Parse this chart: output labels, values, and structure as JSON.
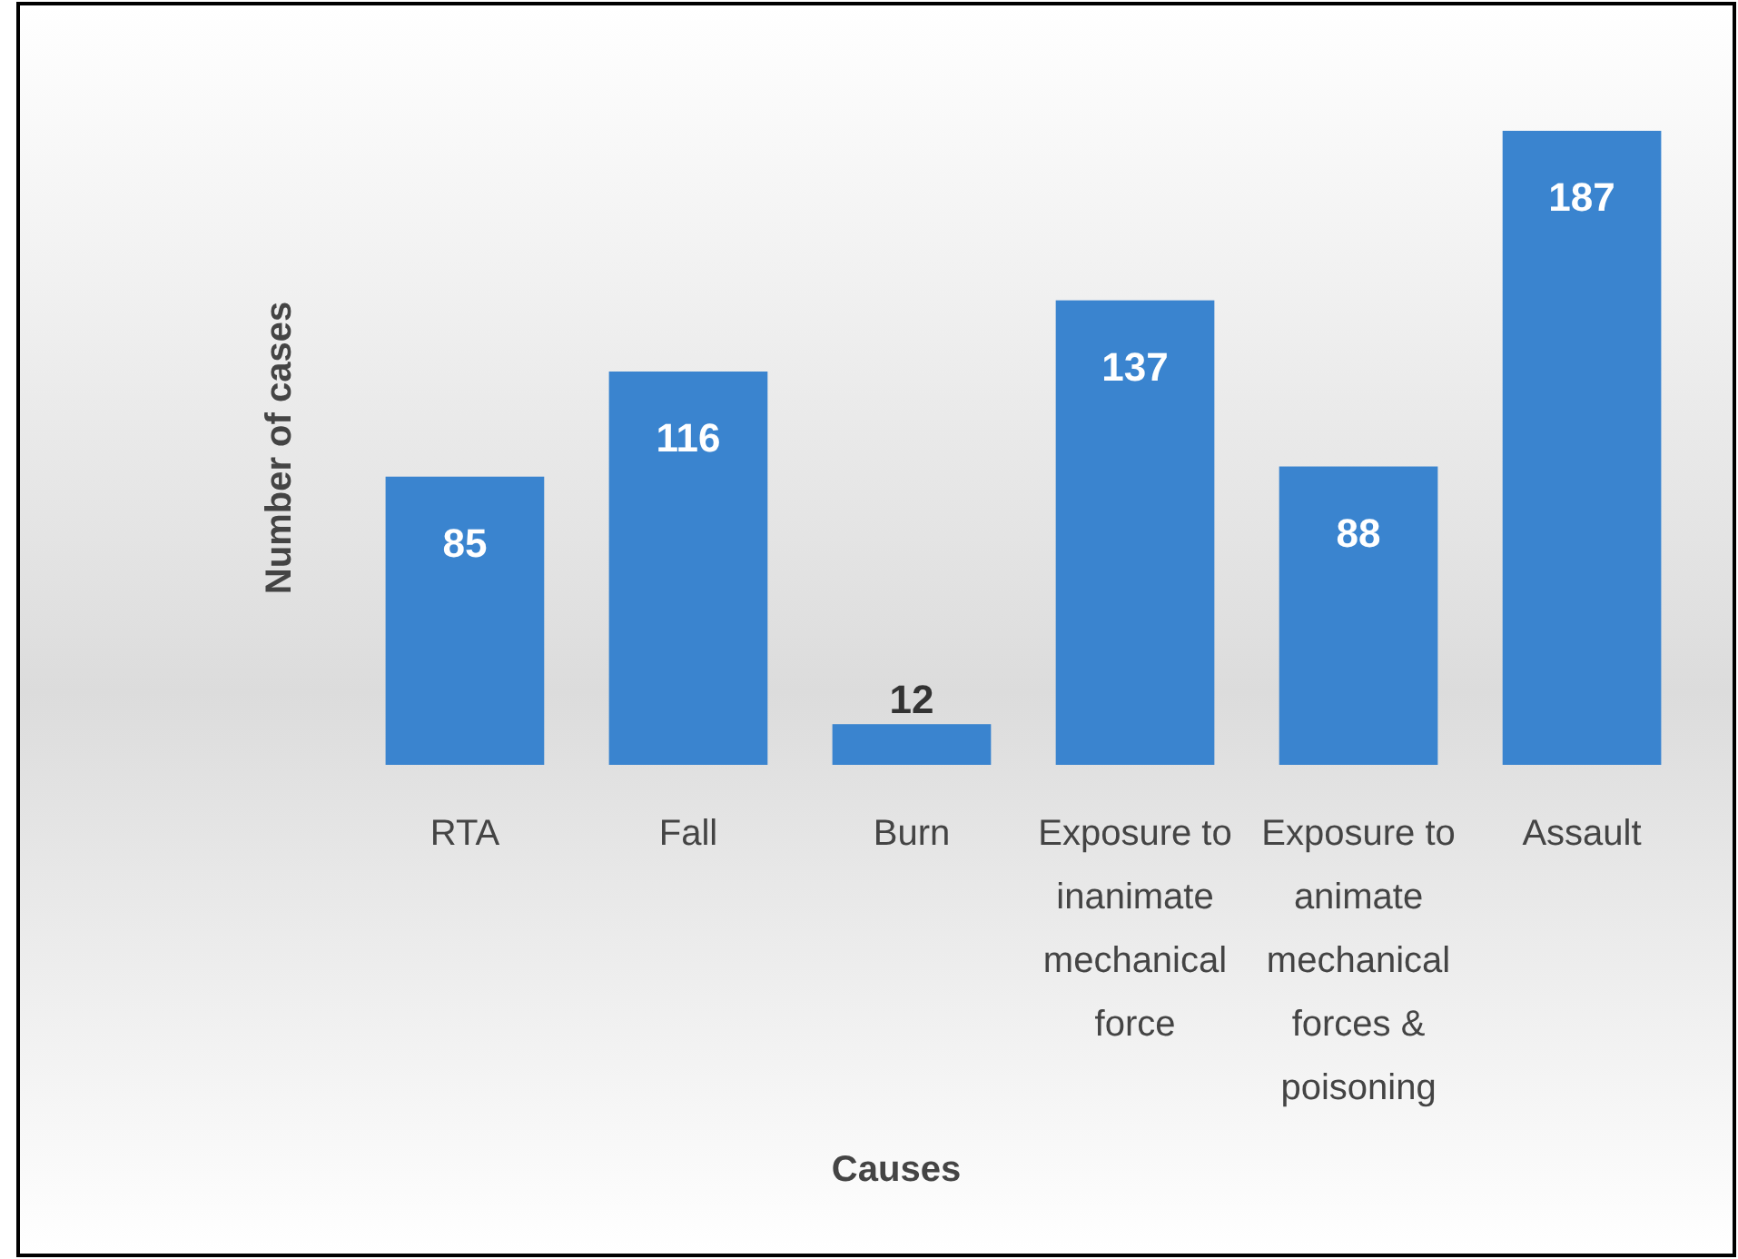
{
  "chart_data": {
    "type": "bar",
    "xlabel": "Causes",
    "ylabel": "Number of cases",
    "categories": [
      "RTA",
      "Fall",
      "Burn",
      "Exposure to inanimate mechanical force",
      "Exposure to animate mechanical forces & poisoning",
      "Assault"
    ],
    "values": [
      85,
      116,
      12,
      137,
      88,
      187
    ],
    "color": "#3a84cf",
    "data_labels": true,
    "tick_labels": "x"
  }
}
